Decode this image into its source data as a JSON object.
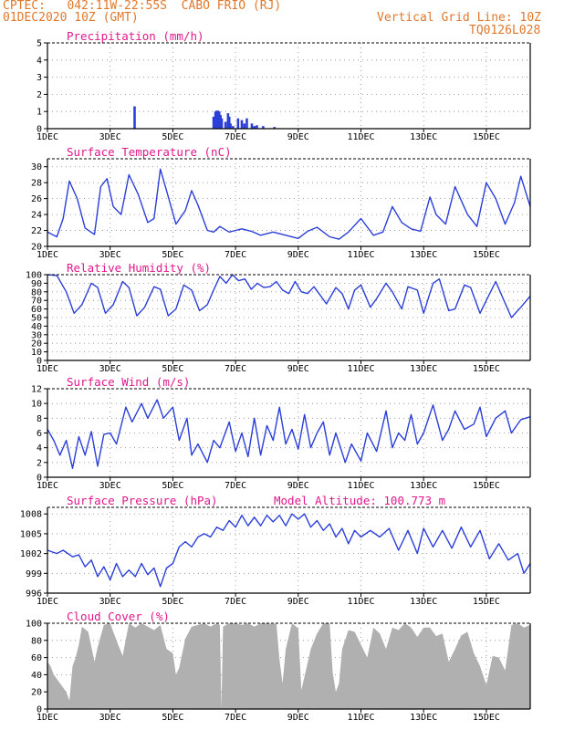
{
  "header": {
    "line1": "CPTEC:   042:11W-22:55S  CABO FRIO (RJ)",
    "line2": "01DEC2020 10Z (GMT)",
    "grid_note": "Vertical Grid Line: 10Z",
    "run_id": "TQ0126L028"
  },
  "colors": {
    "line": "#2b3fd8",
    "bar": "#2b3fd8",
    "cloud": "#b0b0b0",
    "title": "#e0188c",
    "header": "#e0782c"
  },
  "chart_data": [
    {
      "id": "precip",
      "type": "bar",
      "title": "Precipitation (mm/h)",
      "ylim": [
        0,
        5
      ],
      "yticks": [
        0,
        1,
        2,
        3,
        4,
        5
      ],
      "xlim_days": [
        1.0,
        16.4
      ],
      "xticklabels": [
        "1DEC",
        "3DEC",
        "5DEC",
        "7DEC",
        "9DEC",
        "11DEC",
        "13DEC",
        "15DEC"
      ],
      "x": [
        3.78,
        6.3,
        6.36,
        6.4,
        6.44,
        6.48,
        6.52,
        6.56,
        6.68,
        6.76,
        6.8,
        6.84,
        6.92,
        7.08,
        7.2,
        7.28,
        7.36,
        7.52,
        7.6,
        7.68,
        7.88,
        8.24
      ],
      "values": [
        1.3,
        0.7,
        1.0,
        1.05,
        1.05,
        1.0,
        0.8,
        0.6,
        0.4,
        0.9,
        0.7,
        0.3,
        0.15,
        0.6,
        0.5,
        0.3,
        0.6,
        0.3,
        0.15,
        0.2,
        0.15,
        0.1
      ]
    },
    {
      "id": "temp",
      "type": "line",
      "title": "Surface Temperature (nC)",
      "ylim": [
        20,
        31
      ],
      "yticks": [
        20,
        22,
        24,
        26,
        28,
        30
      ],
      "xlim_days": [
        1.0,
        16.4
      ],
      "xticklabels": [
        "1DEC",
        "3DEC",
        "5DEC",
        "7DEC",
        "9DEC",
        "11DEC",
        "13DEC",
        "15DEC"
      ],
      "x": [
        1.0,
        1.3,
        1.5,
        1.7,
        1.95,
        2.2,
        2.5,
        2.7,
        2.9,
        3.1,
        3.35,
        3.6,
        3.9,
        4.2,
        4.4,
        4.6,
        4.8,
        5.1,
        5.4,
        5.6,
        5.8,
        6.1,
        6.3,
        6.5,
        6.8,
        7.2,
        7.5,
        7.8,
        8.2,
        8.6,
        9.0,
        9.3,
        9.6,
        10.0,
        10.3,
        10.6,
        11.0,
        11.4,
        11.7,
        12.0,
        12.3,
        12.6,
        12.9,
        13.2,
        13.4,
        13.7,
        14.0,
        14.4,
        14.7,
        15.0,
        15.3,
        15.6,
        15.9,
        16.1,
        16.4
      ],
      "values": [
        21.8,
        21.2,
        23.5,
        28.2,
        26.0,
        22.3,
        21.5,
        27.5,
        28.5,
        25.0,
        24.0,
        29.0,
        26.5,
        23.0,
        23.5,
        29.7,
        27.0,
        22.8,
        24.5,
        27.0,
        25.2,
        22.0,
        21.8,
        22.5,
        21.8,
        22.2,
        21.9,
        21.4,
        21.8,
        21.4,
        21.0,
        21.9,
        22.4,
        21.2,
        20.9,
        21.8,
        23.5,
        21.4,
        21.8,
        25.0,
        23.0,
        22.2,
        21.9,
        26.2,
        24.0,
        22.8,
        27.5,
        24.0,
        22.5,
        28.0,
        26.0,
        22.8,
        25.5,
        28.8,
        25.0
      ]
    },
    {
      "id": "rh",
      "type": "line",
      "title": "Relative Humidity (%)",
      "ylim": [
        0,
        100
      ],
      "yticks": [
        0,
        10,
        20,
        30,
        40,
        50,
        60,
        70,
        80,
        90,
        100
      ],
      "xlim_days": [
        1.0,
        16.4
      ],
      "xticklabels": [
        "1DEC",
        "3DEC",
        "5DEC",
        "7DEC",
        "9DEC",
        "11DEC",
        "13DEC",
        "15DEC"
      ],
      "x": [
        1.0,
        1.3,
        1.6,
        1.85,
        2.1,
        2.4,
        2.6,
        2.85,
        3.1,
        3.4,
        3.6,
        3.85,
        4.1,
        4.4,
        4.6,
        4.85,
        5.1,
        5.35,
        5.6,
        5.85,
        6.1,
        6.3,
        6.5,
        6.7,
        6.9,
        7.1,
        7.3,
        7.5,
        7.7,
        7.9,
        8.1,
        8.3,
        8.5,
        8.7,
        8.9,
        9.1,
        9.3,
        9.5,
        9.7,
        9.9,
        10.2,
        10.4,
        10.6,
        10.8,
        11.0,
        11.3,
        11.5,
        11.8,
        12.0,
        12.3,
        12.5,
        12.8,
        13.0,
        13.3,
        13.5,
        13.8,
        14.0,
        14.3,
        14.5,
        14.8,
        15.0,
        15.3,
        15.5,
        15.8,
        16.1,
        16.4
      ],
      "values": [
        100,
        99,
        80,
        55,
        65,
        90,
        85,
        55,
        65,
        92,
        85,
        52,
        62,
        86,
        83,
        52,
        60,
        88,
        82,
        58,
        65,
        82,
        98,
        90,
        100,
        93,
        95,
        83,
        90,
        85,
        86,
        92,
        82,
        78,
        92,
        80,
        78,
        86,
        76,
        66,
        85,
        78,
        60,
        82,
        88,
        62,
        72,
        90,
        80,
        60,
        86,
        82,
        55,
        90,
        95,
        58,
        60,
        88,
        85,
        55,
        70,
        92,
        75,
        50,
        62,
        75
      ]
    },
    {
      "id": "wind",
      "type": "line",
      "title": "Surface Wind (m/s)",
      "ylim": [
        0,
        12
      ],
      "yticks": [
        0,
        2,
        4,
        6,
        8,
        10,
        12
      ],
      "xlim_days": [
        1.0,
        16.4
      ],
      "xticklabels": [
        "1DEC",
        "3DEC",
        "5DEC",
        "7DEC",
        "9DEC",
        "11DEC",
        "13DEC",
        "15DEC"
      ],
      "x": [
        1.0,
        1.2,
        1.4,
        1.6,
        1.8,
        2.0,
        2.2,
        2.4,
        2.6,
        2.8,
        3.0,
        3.2,
        3.5,
        3.7,
        4.0,
        4.2,
        4.5,
        4.7,
        5.0,
        5.2,
        5.45,
        5.6,
        5.8,
        6.1,
        6.3,
        6.5,
        6.8,
        7.0,
        7.2,
        7.4,
        7.6,
        7.8,
        8.0,
        8.2,
        8.4,
        8.6,
        8.8,
        9.0,
        9.2,
        9.4,
        9.6,
        9.8,
        10.0,
        10.2,
        10.5,
        10.7,
        11.0,
        11.2,
        11.5,
        11.8,
        12.0,
        12.2,
        12.4,
        12.6,
        12.8,
        13.0,
        13.3,
        13.6,
        13.8,
        14.0,
        14.3,
        14.6,
        14.8,
        15.0,
        15.3,
        15.6,
        15.8,
        16.1,
        16.4
      ],
      "values": [
        6.5,
        5.0,
        3.0,
        5.0,
        1.2,
        5.5,
        3.0,
        6.2,
        1.5,
        5.8,
        6.0,
        4.5,
        9.5,
        7.5,
        10.0,
        8.0,
        10.5,
        8.0,
        9.5,
        5.0,
        8.0,
        3.0,
        4.5,
        2.0,
        5.0,
        4.0,
        7.5,
        3.5,
        6.0,
        2.8,
        8.0,
        3.0,
        7.0,
        5.0,
        9.5,
        4.5,
        6.5,
        3.8,
        8.5,
        4.0,
        6.0,
        7.5,
        3.0,
        6.0,
        2.0,
        4.5,
        2.2,
        6.0,
        3.5,
        9.0,
        4.0,
        6.0,
        5.0,
        8.5,
        4.5,
        6.0,
        9.8,
        5.0,
        6.5,
        9.0,
        6.5,
        7.2,
        9.5,
        5.5,
        8.0,
        9.0,
        6.0,
        7.8,
        8.2
      ]
    },
    {
      "id": "pres",
      "type": "line",
      "title": "Surface Pressure (hPa)",
      "ylim": [
        996,
        1009
      ],
      "yticks": [
        996,
        999,
        1002,
        1005,
        1008
      ],
      "annotation": "Model Altitude: 100.773  m",
      "xlim_days": [
        1.0,
        16.4
      ],
      "xticklabels": [
        "1DEC",
        "3DEC",
        "5DEC",
        "7DEC",
        "9DEC",
        "11DEC",
        "13DEC",
        "15DEC"
      ],
      "x": [
        1.0,
        1.3,
        1.5,
        1.8,
        2.0,
        2.2,
        2.4,
        2.6,
        2.8,
        3.0,
        3.2,
        3.4,
        3.6,
        3.8,
        4.0,
        4.2,
        4.4,
        4.6,
        4.8,
        5.0,
        5.2,
        5.4,
        5.6,
        5.8,
        6.0,
        6.2,
        6.4,
        6.6,
        6.8,
        7.0,
        7.2,
        7.4,
        7.6,
        7.8,
        8.0,
        8.2,
        8.4,
        8.6,
        8.8,
        9.0,
        9.2,
        9.4,
        9.6,
        9.8,
        10.0,
        10.2,
        10.4,
        10.6,
        10.8,
        11.0,
        11.3,
        11.6,
        11.9,
        12.2,
        12.5,
        12.8,
        13.0,
        13.3,
        13.6,
        13.9,
        14.2,
        14.5,
        14.8,
        15.1,
        15.4,
        15.7,
        16.0,
        16.2,
        16.4
      ],
      "values": [
        1002.5,
        1002.0,
        1002.5,
        1001.5,
        1001.8,
        1000.0,
        1001.0,
        998.5,
        1000.0,
        998.0,
        1000.5,
        998.5,
        999.5,
        998.5,
        1000.5,
        998.8,
        999.8,
        997.0,
        999.8,
        1000.5,
        1003.0,
        1003.8,
        1003.0,
        1004.5,
        1005.0,
        1004.5,
        1006.0,
        1005.5,
        1007.0,
        1006.0,
        1007.8,
        1006.2,
        1007.5,
        1006.2,
        1007.8,
        1006.8,
        1007.8,
        1006.2,
        1008.0,
        1007.2,
        1008.0,
        1006.0,
        1007.0,
        1005.5,
        1006.5,
        1004.5,
        1005.8,
        1003.5,
        1005.5,
        1004.5,
        1005.5,
        1004.5,
        1005.8,
        1002.5,
        1005.5,
        1002.0,
        1005.8,
        1003.0,
        1005.5,
        1002.8,
        1006.0,
        1003.0,
        1005.5,
        1001.2,
        1003.5,
        1001.0,
        1002.0,
        999.0,
        1000.5
      ]
    },
    {
      "id": "cloud",
      "type": "area",
      "title": "Cloud Cover (%)",
      "ylim": [
        0,
        100
      ],
      "yticks": [
        0,
        20,
        40,
        60,
        80,
        100
      ],
      "xlim_days": [
        1.0,
        16.4
      ],
      "xticklabels": [
        "1DEC",
        "3DEC",
        "5DEC",
        "7DEC",
        "9DEC",
        "11DEC",
        "13DEC",
        "15DEC"
      ],
      "x": [
        1.0,
        1.1,
        1.2,
        1.4,
        1.6,
        1.7,
        1.8,
        1.9,
        2.0,
        2.1,
        2.3,
        2.5,
        2.6,
        2.8,
        3.0,
        3.2,
        3.4,
        3.6,
        3.8,
        4.0,
        4.2,
        4.4,
        4.6,
        4.8,
        5.0,
        5.1,
        5.2,
        5.4,
        5.6,
        5.8,
        6.0,
        6.2,
        6.4,
        6.5,
        6.55,
        6.6,
        6.8,
        7.0,
        7.2,
        7.4,
        7.6,
        7.8,
        8.0,
        8.2,
        8.3,
        8.4,
        8.5,
        8.6,
        8.8,
        9.0,
        9.1,
        9.2,
        9.4,
        9.6,
        9.8,
        10.0,
        10.1,
        10.2,
        10.3,
        10.4,
        10.6,
        10.8,
        11.0,
        11.2,
        11.4,
        11.6,
        11.8,
        12.0,
        12.2,
        12.4,
        12.6,
        12.8,
        13.0,
        13.2,
        13.4,
        13.6,
        13.8,
        14.0,
        14.2,
        14.4,
        14.6,
        14.8,
        15.0,
        15.2,
        15.4,
        15.6,
        15.8,
        16.0,
        16.2,
        16.4
      ],
      "values": [
        55,
        50,
        40,
        30,
        20,
        10,
        50,
        60,
        75,
        96,
        90,
        55,
        72,
        98,
        100,
        80,
        62,
        100,
        95,
        100,
        96,
        92,
        98,
        70,
        65,
        40,
        48,
        82,
        96,
        98,
        100,
        96,
        100,
        98,
        0,
        96,
        100,
        100,
        98,
        100,
        96,
        100,
        100,
        99,
        100,
        58,
        30,
        70,
        100,
        94,
        22,
        38,
        70,
        88,
        100,
        100,
        42,
        20,
        30,
        70,
        92,
        90,
        75,
        60,
        95,
        88,
        70,
        95,
        92,
        100,
        95,
        84,
        95,
        95,
        85,
        88,
        55,
        70,
        86,
        90,
        65,
        50,
        28,
        62,
        60,
        45,
        98,
        100,
        95,
        98
      ]
    }
  ]
}
